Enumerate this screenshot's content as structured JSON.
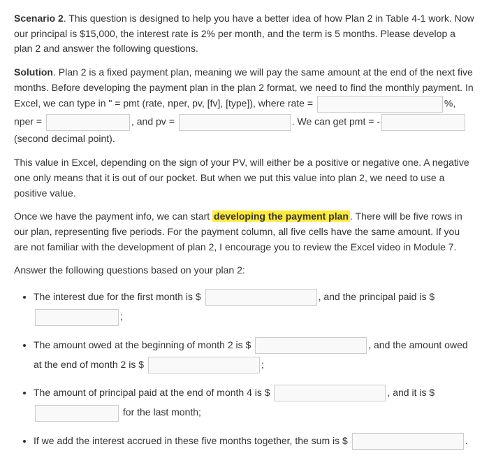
{
  "scenario": {
    "label": "Scenario 2",
    "text": ". This question is designed to help you have a better idea of how Plan 2 in Table 4-1 work. Now our principal is $15,000, the interest rate is 2% per month, and the term is 5 months. Please develop a plan 2 and answer the following questions."
  },
  "solution": {
    "label": "Solution",
    "part1": ". Plan 2 is a fixed payment plan, meaning we will pay the same amount at the end of the next five months. Before developing the payment plan in the plan 2 format, we need to find the monthly payment. In Excel, we can type in \" = pmt (rate, nper, pv, [fv], [type]), where rate = ",
    "pct": "%, nper = ",
    "and_pv": ", and pv = ",
    "we_can_get": ". We can get pmt = -",
    "second_decimal": "(second decimal point)."
  },
  "para3": "This value in Excel, depending on the sign of your PV, will either be a positive or negative one. A negative one only means that it is out of our pocket. But when we put this value into plan 2, we need to use a positive value.",
  "para4a": "Once we have the payment info, we can start ",
  "para4_highlight": "developing the payment plan",
  "para4b": ". There will be five rows in our plan, representing five periods. For the payment column, all five cells have the same amount. If you are not familiar with the development of plan 2, I encourage you to review the Excel video in Module 7.",
  "para5": "Answer the following questions based on your plan 2:",
  "q1": {
    "a": "The interest due for the first month is $ ",
    "b": ", and the principal paid is $",
    "semi": ";"
  },
  "q2": {
    "a": "The amount owed at the beginning of month 2 is $ ",
    "b": ", and the amount owed at the end of month 2 is $ ",
    "semi": ";"
  },
  "q3": {
    "a": "The amount of principal paid at the end of month 4 is $ ",
    "b": ", and it is $",
    "c": " for the last month;"
  },
  "q4": {
    "a": "If we add the interest accrued in these five months together, the sum is $ ",
    "dot": "."
  }
}
